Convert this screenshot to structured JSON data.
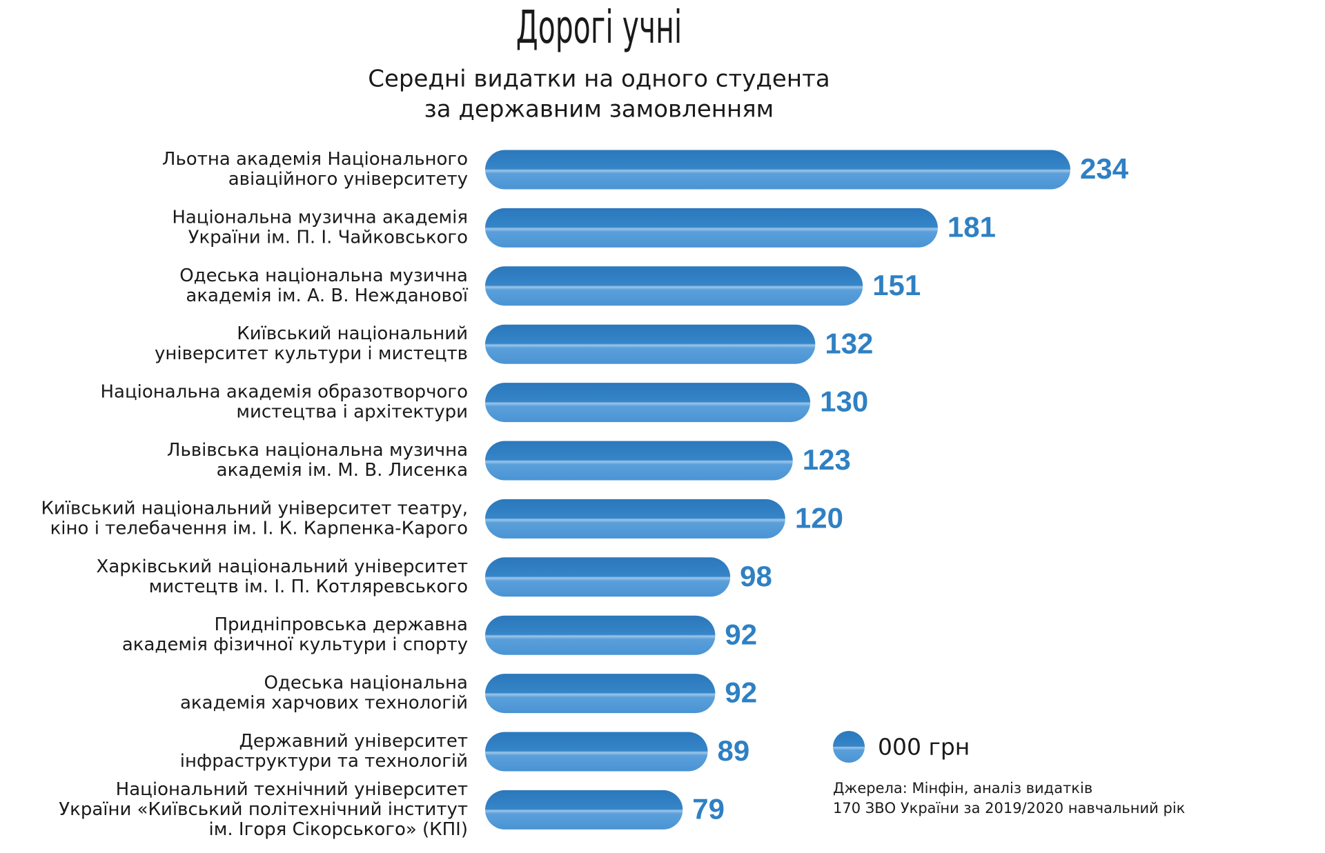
{
  "chart_data": {
    "type": "bar",
    "orientation": "horizontal",
    "title": "Дорогі учні",
    "subtitle": [
      "Середні видатки на одного студента",
      "за державним замовленням"
    ],
    "categories": [
      [
        "Льотна академія Національного",
        "авіаційного університету"
      ],
      [
        "Національна музична академія",
        "України ім. П. І. Чайковського"
      ],
      [
        "Одеська національна музична",
        "академія ім. А. В. Нежданової"
      ],
      [
        "Київський національний",
        "університет культури і мистецтв"
      ],
      [
        "Національна академія образотворчого",
        "мистецтва і архітектури"
      ],
      [
        "Львівська національна музична",
        "академія ім. М. В. Лисенка"
      ],
      [
        "Київський національний університет театру,",
        "кіно і телебачення ім. І. К. Карпенка-Карого"
      ],
      [
        "Харківський національний університет",
        "мистецтв ім. І. П. Котляревського"
      ],
      [
        "Придніпровська державна",
        "академія фізичної культури і спорту"
      ],
      [
        "Одеська національна",
        "академія харчових технологій"
      ],
      [
        "Державний університет",
        "інфраструктури та технологій"
      ],
      [
        "Національний технічний університет",
        "України «Київський політехнічний інститут",
        "ім. Ігоря Сікорського» (КПІ)"
      ]
    ],
    "series": [
      {
        "name": "000 грн",
        "color": "#2f80c3",
        "values": [
          234,
          181,
          151,
          132,
          130,
          123,
          120,
          98,
          92,
          92,
          89,
          79
        ]
      }
    ],
    "source": [
      "Джерела: Мінфін, аналіз видатків",
      "170 ЗВО України за 2019/2020 навчальний рік"
    ]
  }
}
